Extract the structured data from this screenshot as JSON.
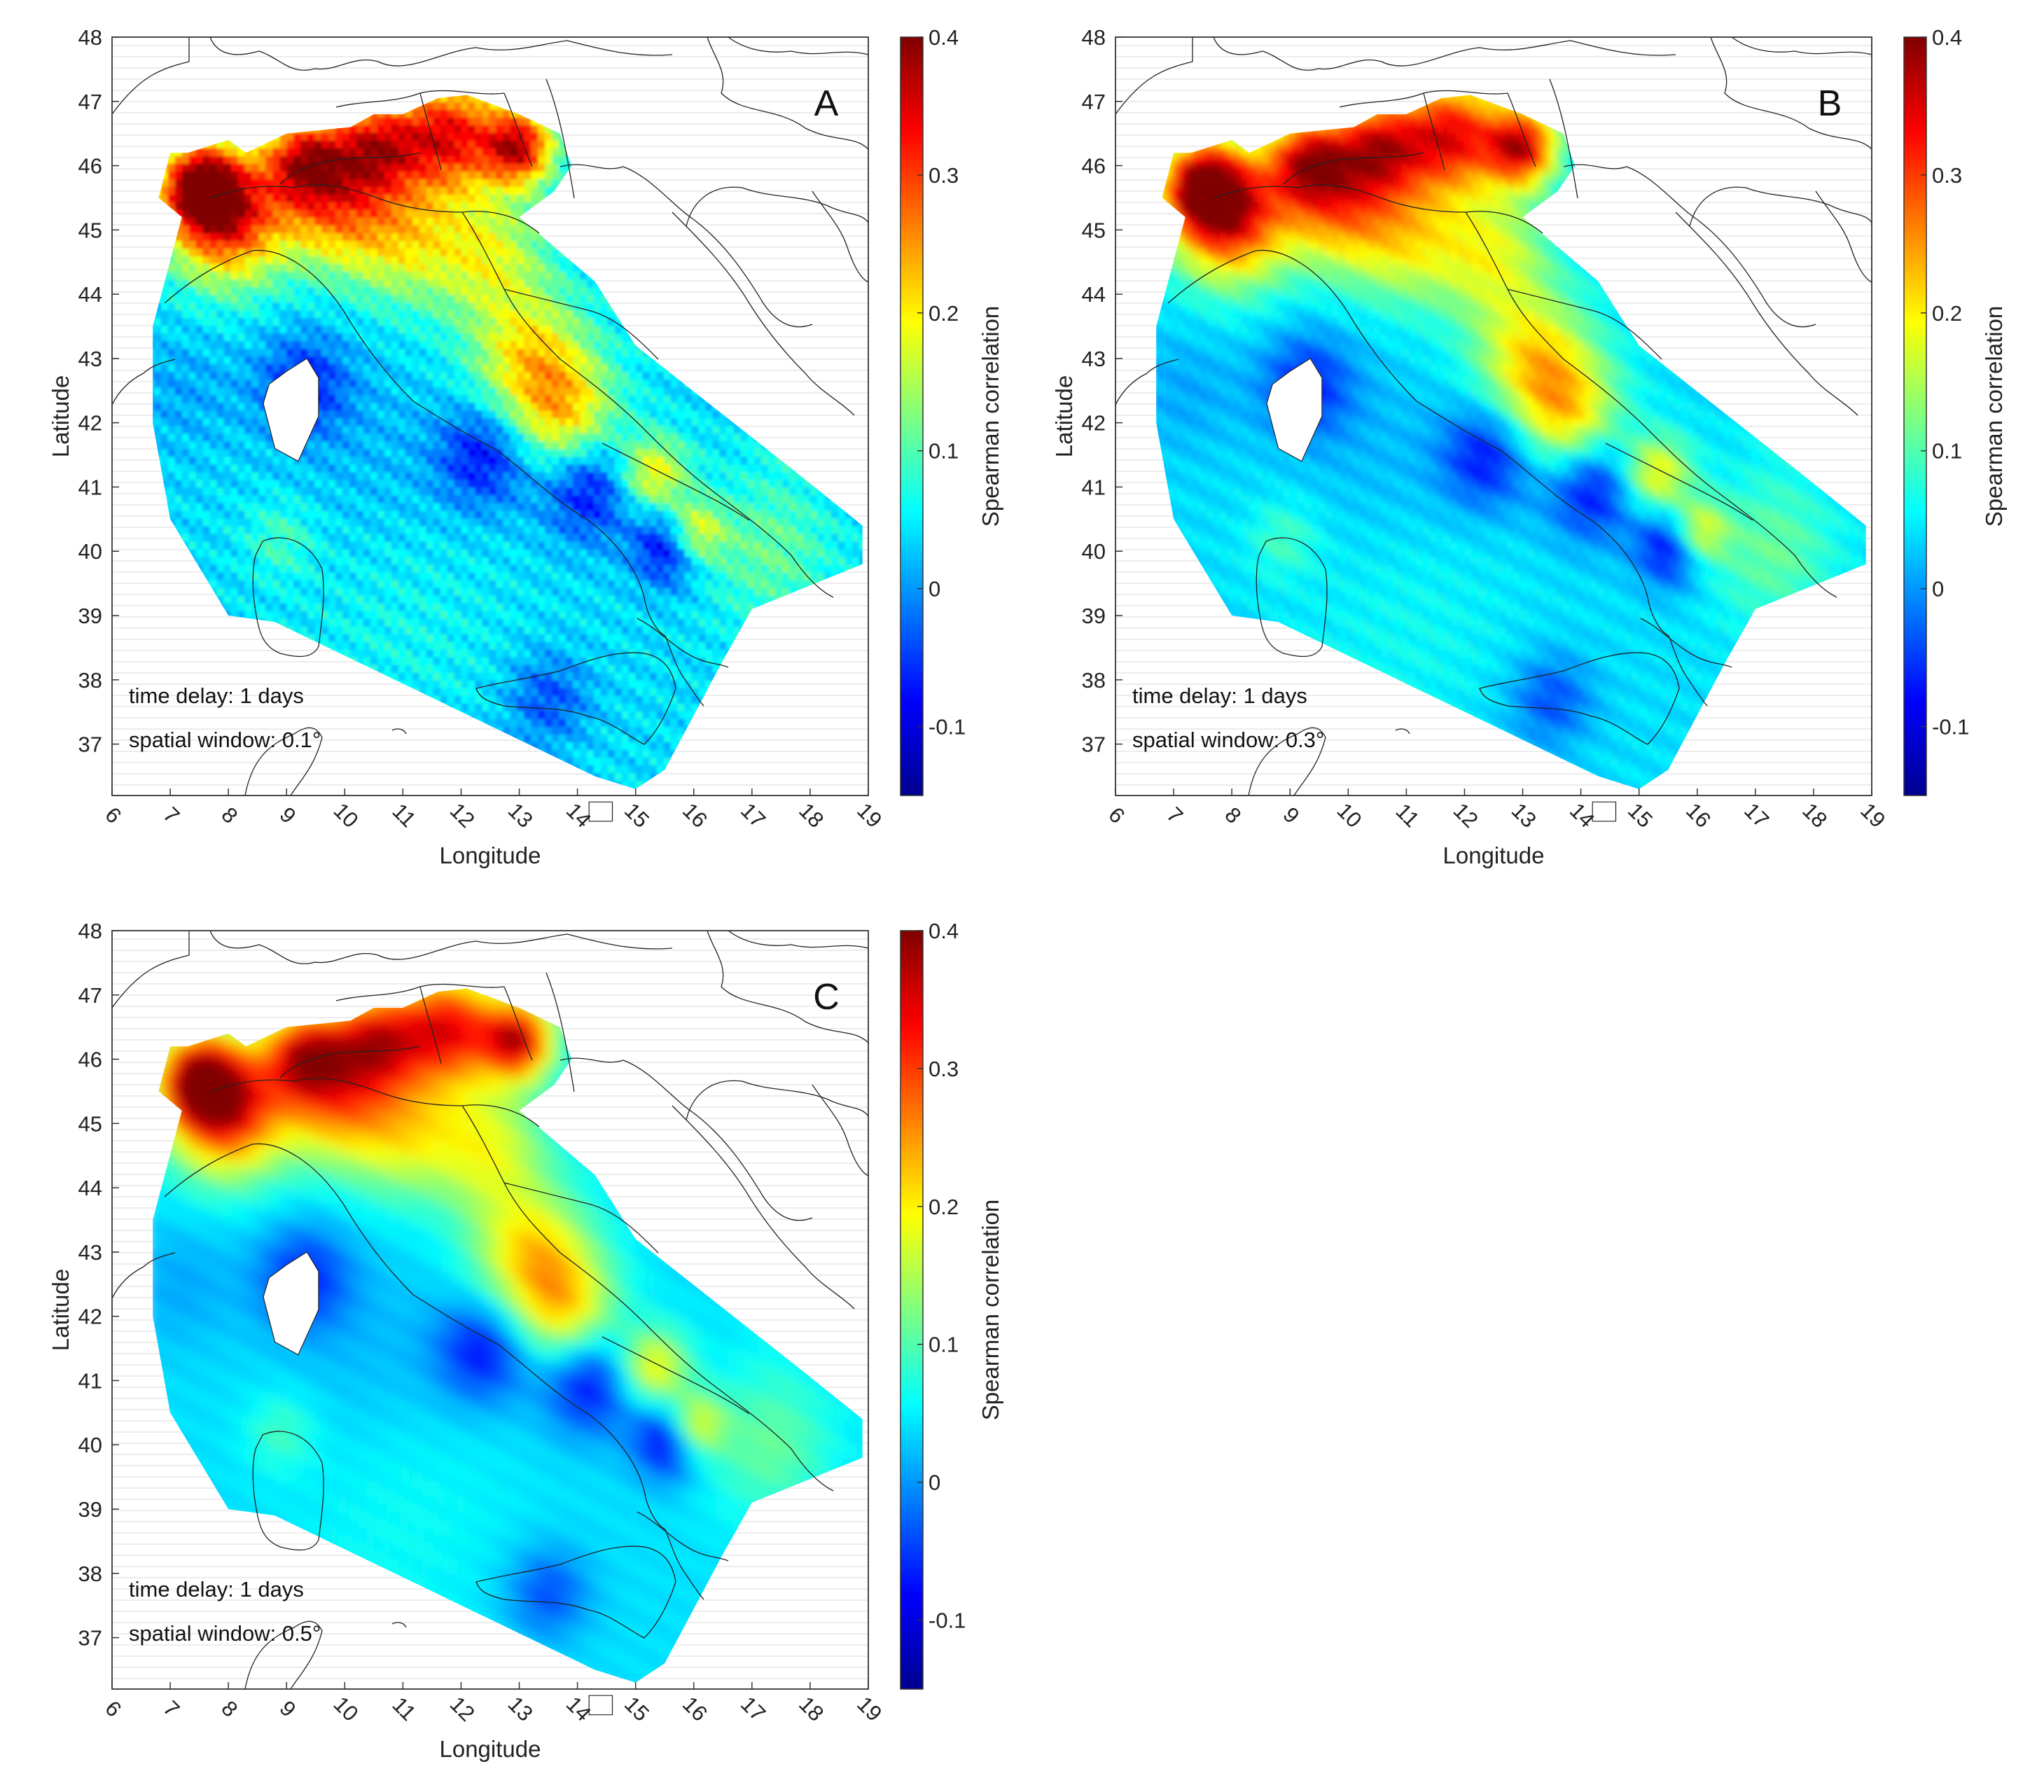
{
  "panels": [
    {
      "label": "A",
      "annotation_line1": "time delay: 1 days",
      "annotation_line2": "spatial window: 0.1°",
      "xlabel": "Longitude",
      "ylabel": "Latitude",
      "colorbar_label": "Spearman correlation",
      "x_ticks": [
        "6",
        "7",
        "8",
        "9",
        "10",
        "11",
        "12",
        "13",
        "14",
        "15",
        "16",
        "17",
        "18",
        "19"
      ],
      "y_ticks": [
        "48",
        "47",
        "46",
        "45",
        "44",
        "43",
        "42",
        "41",
        "40",
        "39",
        "38",
        "37"
      ],
      "colorbar_ticks": [
        "0.4",
        "0.3",
        "0.2",
        "0.1",
        "0",
        "-0.1"
      ],
      "smoothness": 0.0
    },
    {
      "label": "B",
      "annotation_line1": "time delay: 1 days",
      "annotation_line2": "spatial window: 0.3°",
      "xlabel": "Longitude",
      "ylabel": "Latitude",
      "colorbar_label": "Spearman correlation",
      "x_ticks": [
        "6",
        "7",
        "8",
        "9",
        "10",
        "11",
        "12",
        "13",
        "14",
        "15",
        "16",
        "17",
        "18",
        "19"
      ],
      "y_ticks": [
        "48",
        "47",
        "46",
        "45",
        "44",
        "43",
        "42",
        "41",
        "40",
        "39",
        "38",
        "37"
      ],
      "colorbar_ticks": [
        "0.4",
        "0.3",
        "0.2",
        "0.1",
        "0",
        "-0.1"
      ],
      "smoothness": 0.5
    },
    {
      "label": "C",
      "annotation_line1": "time delay: 1 days",
      "annotation_line2": "spatial window: 0.5°",
      "xlabel": "Longitude",
      "ylabel": "Latitude",
      "colorbar_label": "Spearman correlation",
      "x_ticks": [
        "6",
        "7",
        "8",
        "9",
        "10",
        "11",
        "12",
        "13",
        "14",
        "15",
        "16",
        "17",
        "18",
        "19"
      ],
      "y_ticks": [
        "48",
        "47",
        "46",
        "45",
        "44",
        "43",
        "42",
        "41",
        "40",
        "39",
        "38",
        "37"
      ],
      "colorbar_ticks": [
        "0.4",
        "0.3",
        "0.2",
        "0.1",
        "0",
        "-0.1"
      ],
      "smoothness": 1.0
    }
  ],
  "map_extent": {
    "lon": [
      6,
      19
    ],
    "lat": [
      36.2,
      48
    ]
  },
  "colorbar_range": [
    -0.15,
    0.4
  ],
  "colormap": "jet",
  "colors": {
    "land_outline": "#222222",
    "background": "#ffffff",
    "gridline": "#e6e6e6"
  }
}
